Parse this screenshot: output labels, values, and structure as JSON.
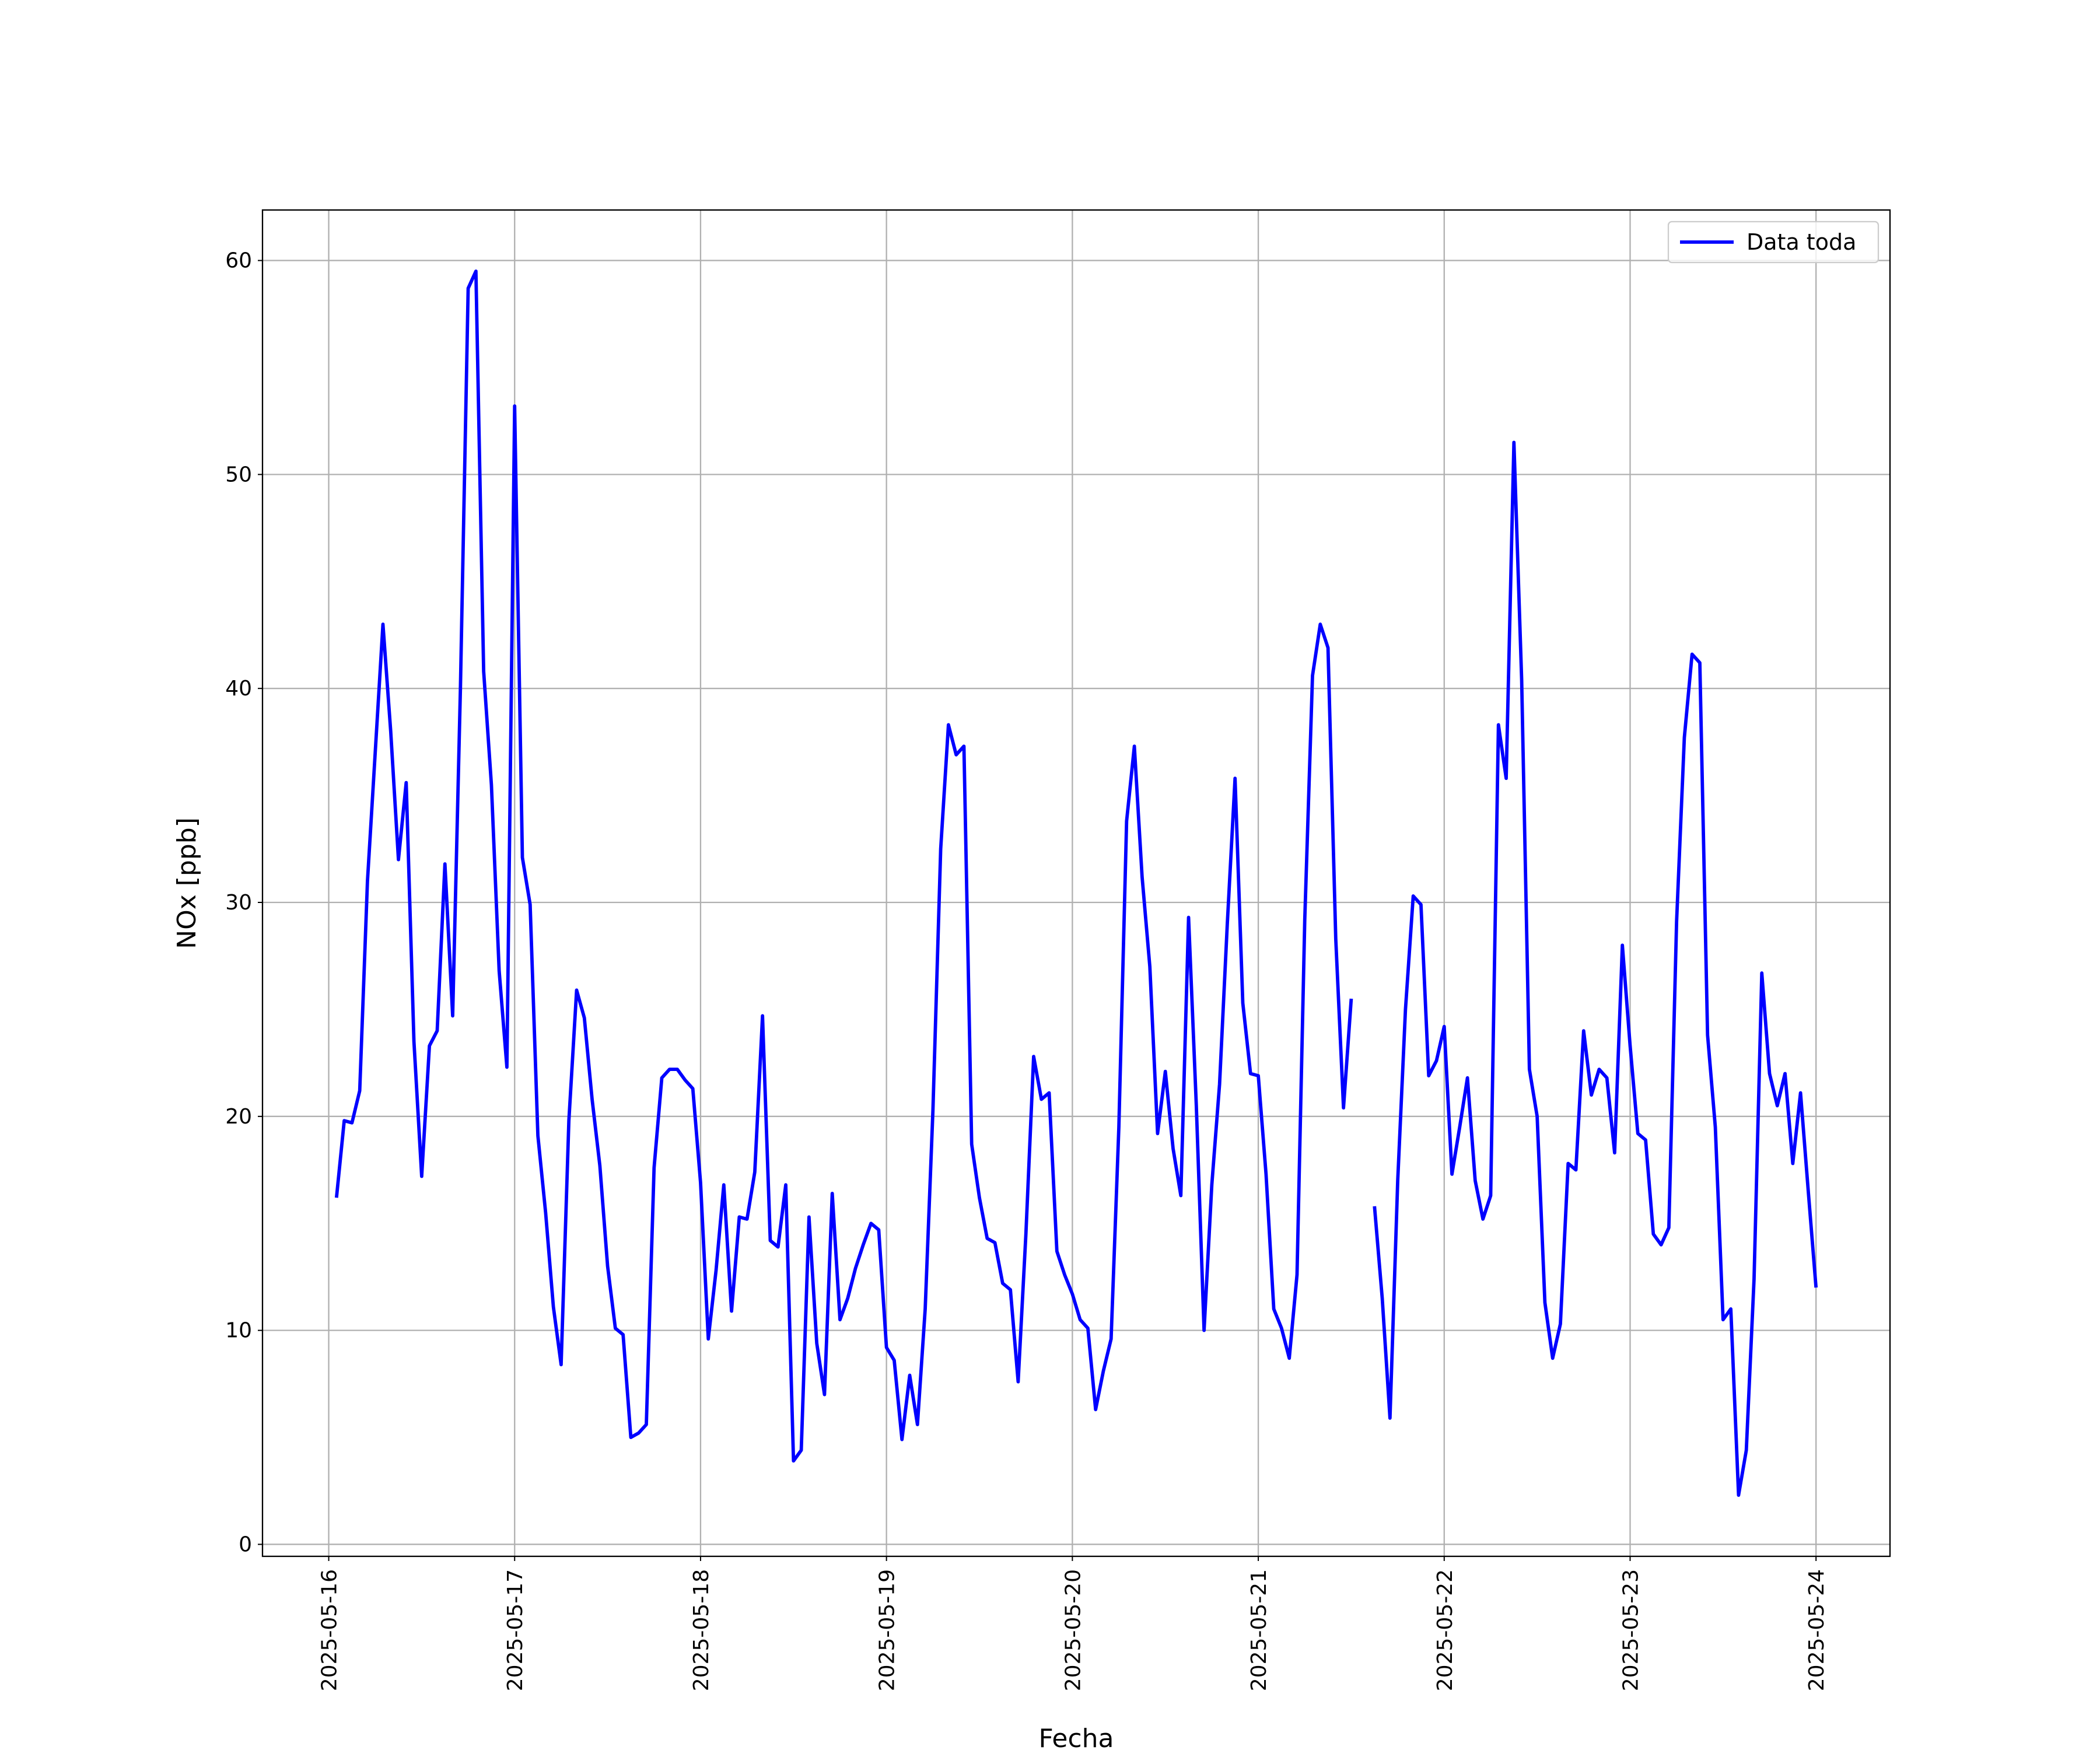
{
  "chart_data": {
    "type": "line",
    "xlabel": "Fecha",
    "ylabel": "NOx [ppb]",
    "x": [
      "2025-05-16 01:00",
      "2025-05-16 02:00",
      "2025-05-16 03:00",
      "2025-05-16 04:00",
      "2025-05-16 05:00",
      "2025-05-16 06:00",
      "2025-05-16 07:00",
      "2025-05-16 08:00",
      "2025-05-16 09:00",
      "2025-05-16 10:00",
      "2025-05-16 11:00",
      "2025-05-16 12:00",
      "2025-05-16 13:00",
      "2025-05-16 14:00",
      "2025-05-16 15:00",
      "2025-05-16 16:00",
      "2025-05-16 17:00",
      "2025-05-16 18:00",
      "2025-05-16 19:00",
      "2025-05-16 20:00",
      "2025-05-16 21:00",
      "2025-05-16 22:00",
      "2025-05-16 23:00",
      "2025-05-17 00:00",
      "2025-05-17 01:00",
      "2025-05-17 02:00",
      "2025-05-17 03:00",
      "2025-05-17 04:00",
      "2025-05-17 05:00",
      "2025-05-17 06:00",
      "2025-05-17 07:00",
      "2025-05-17 08:00",
      "2025-05-17 09:00",
      "2025-05-17 10:00",
      "2025-05-17 11:00",
      "2025-05-17 12:00",
      "2025-05-17 13:00",
      "2025-05-17 14:00",
      "2025-05-17 15:00",
      "2025-05-17 16:00",
      "2025-05-17 17:00",
      "2025-05-17 18:00",
      "2025-05-17 19:00",
      "2025-05-17 20:00",
      "2025-05-17 21:00",
      "2025-05-17 22:00",
      "2025-05-17 23:00",
      "2025-05-18 00:00",
      "2025-05-18 01:00",
      "2025-05-18 02:00",
      "2025-05-18 03:00",
      "2025-05-18 04:00",
      "2025-05-18 05:00",
      "2025-05-18 06:00",
      "2025-05-18 07:00",
      "2025-05-18 08:00",
      "2025-05-18 09:00",
      "2025-05-18 10:00",
      "2025-05-18 11:00",
      "2025-05-18 12:00",
      "2025-05-18 13:00",
      "2025-05-18 14:00",
      "2025-05-18 15:00",
      "2025-05-18 16:00",
      "2025-05-18 17:00",
      "2025-05-18 18:00",
      "2025-05-18 19:00",
      "2025-05-18 20:00",
      "2025-05-18 21:00",
      "2025-05-18 22:00",
      "2025-05-18 23:00",
      "2025-05-19 00:00",
      "2025-05-19 01:00",
      "2025-05-19 02:00",
      "2025-05-19 03:00",
      "2025-05-19 04:00",
      "2025-05-19 05:00",
      "2025-05-19 06:00",
      "2025-05-19 07:00",
      "2025-05-19 08:00",
      "2025-05-19 09:00",
      "2025-05-19 10:00",
      "2025-05-19 11:00",
      "2025-05-19 12:00",
      "2025-05-19 13:00",
      "2025-05-19 14:00",
      "2025-05-19 15:00",
      "2025-05-19 16:00",
      "2025-05-19 17:00",
      "2025-05-19 18:00",
      "2025-05-19 19:00",
      "2025-05-19 20:00",
      "2025-05-19 21:00",
      "2025-05-19 22:00",
      "2025-05-19 23:00",
      "2025-05-20 00:00",
      "2025-05-20 01:00",
      "2025-05-20 02:00",
      "2025-05-20 03:00",
      "2025-05-20 04:00",
      "2025-05-20 05:00",
      "2025-05-20 06:00",
      "2025-05-20 07:00",
      "2025-05-20 08:00",
      "2025-05-20 09:00",
      "2025-05-20 10:00",
      "2025-05-20 11:00",
      "2025-05-20 12:00",
      "2025-05-20 13:00",
      "2025-05-20 14:00",
      "2025-05-20 15:00",
      "2025-05-20 16:00",
      "2025-05-20 17:00",
      "2025-05-20 18:00",
      "2025-05-20 19:00",
      "2025-05-20 20:00",
      "2025-05-20 21:00",
      "2025-05-20 22:00",
      "2025-05-20 23:00",
      "2025-05-21 00:00",
      "2025-05-21 01:00",
      "2025-05-21 02:00",
      "2025-05-21 03:00",
      "2025-05-21 04:00",
      "2025-05-21 05:00",
      "2025-05-21 06:00",
      "2025-05-21 07:00",
      "2025-05-21 08:00",
      "2025-05-21 09:00",
      "2025-05-21 10:00",
      "2025-05-21 11:00",
      "2025-05-21 12:00",
      "2025-05-21 13:00",
      "2025-05-21 14:00",
      "2025-05-21 15:00",
      "2025-05-21 16:00",
      "2025-05-21 17:00",
      "2025-05-21 18:00",
      "2025-05-21 19:00",
      "2025-05-21 20:00",
      "2025-05-21 21:00",
      "2025-05-21 22:00",
      "2025-05-21 23:00",
      "2025-05-22 00:00",
      "2025-05-22 01:00",
      "2025-05-22 02:00",
      "2025-05-22 03:00",
      "2025-05-22 04:00",
      "2025-05-22 05:00",
      "2025-05-22 06:00",
      "2025-05-22 07:00",
      "2025-05-22 08:00",
      "2025-05-22 09:00",
      "2025-05-22 10:00",
      "2025-05-22 11:00",
      "2025-05-22 12:00",
      "2025-05-22 13:00",
      "2025-05-22 14:00",
      "2025-05-22 15:00",
      "2025-05-22 16:00",
      "2025-05-22 17:00",
      "2025-05-22 18:00",
      "2025-05-22 19:00",
      "2025-05-22 20:00",
      "2025-05-22 21:00",
      "2025-05-22 22:00",
      "2025-05-22 23:00",
      "2025-05-23 00:00",
      "2025-05-23 01:00",
      "2025-05-23 02:00",
      "2025-05-23 03:00",
      "2025-05-23 04:00",
      "2025-05-23 05:00",
      "2025-05-23 06:00",
      "2025-05-23 07:00",
      "2025-05-23 08:00",
      "2025-05-23 09:00",
      "2025-05-23 10:00",
      "2025-05-23 11:00",
      "2025-05-23 12:00",
      "2025-05-23 13:00",
      "2025-05-23 14:00",
      "2025-05-23 15:00",
      "2025-05-23 16:00",
      "2025-05-23 17:00",
      "2025-05-23 18:00",
      "2025-05-23 19:00",
      "2025-05-23 20:00",
      "2025-05-23 21:00",
      "2025-05-23 22:00",
      "2025-05-23 23:00",
      "2025-05-24 00:00"
    ],
    "series": [
      {
        "name": "Data toda",
        "color": "#0000ff",
        "values": [
          16.2,
          19.8,
          19.7,
          21.2,
          31,
          37,
          43,
          38,
          32,
          35.6,
          23.5,
          17.2,
          23.3,
          24,
          31.8,
          24.7,
          40,
          58.7,
          59.5,
          40.8,
          35.5,
          26.8,
          22.3,
          53.2,
          32.1,
          29.9,
          19.1,
          15.5,
          11.1,
          8.4,
          19.8,
          25.9,
          24.6,
          20.8,
          17.7,
          13,
          10.1,
          9.8,
          5,
          5.2,
          5.6,
          17.6,
          21.8,
          22.2,
          22.2,
          21.7,
          21.3,
          16.9,
          9.6,
          12.8,
          16.8,
          10.9,
          15.3,
          15.2,
          17.4,
          24.7,
          14.2,
          13.9,
          16.8,
          3.9,
          4.4,
          15.3,
          9.4,
          7,
          16.4,
          10.5,
          11.5,
          12.9,
          14,
          15,
          14.7,
          9.2,
          8.6,
          4.9,
          7.9,
          5.6,
          11,
          20.3,
          32.5,
          38.3,
          36.9,
          37.3,
          18.7,
          16.2,
          14.3,
          14.1,
          12.2,
          11.9,
          7.6,
          14.5,
          22.8,
          20.8,
          21.1,
          13.7,
          12.6,
          11.7,
          10.5,
          10.1,
          6.3,
          8.1,
          9.6,
          19.5,
          33.8,
          37.3,
          31.2,
          27,
          19.2,
          22.1,
          18.5,
          16.3,
          29.3,
          20.5,
          10,
          16.8,
          21.5,
          29,
          35.8,
          25.3,
          22,
          21.9,
          17.3,
          11,
          10.1,
          8.7,
          12.6,
          29.2,
          40.6,
          43,
          41.9,
          28.3,
          20.4,
          25.5,
          null,
          null,
          15.8,
          11.5,
          5.9,
          17,
          25,
          30.3,
          29.9,
          21.9,
          22.6,
          24.2,
          17.3,
          19.5,
          21.8,
          17,
          15.2,
          16.3,
          38.3,
          35.8,
          51.5,
          40.4,
          22.2,
          20,
          11.3,
          8.7,
          10.3,
          17.8,
          17.5,
          24,
          21,
          22.2,
          21.8,
          18.3,
          28,
          23.3,
          19.2,
          18.9,
          14.5,
          14,
          14.8,
          29.1,
          37.7,
          41.6,
          41.2,
          23.8,
          19.5,
          10.5,
          11,
          2.3,
          4.4,
          12.4,
          26.7,
          22,
          20.5,
          22,
          17.8,
          21.1,
          16.5,
          12
        ]
      }
    ],
    "xlim": [
      "2025-05-15 15:27",
      "2025-05-24 09:33"
    ],
    "xticks": [
      "2025-05-16",
      "2025-05-17",
      "2025-05-18",
      "2025-05-19",
      "2025-05-20",
      "2025-05-21",
      "2025-05-22",
      "2025-05-23",
      "2025-05-24"
    ],
    "ylim": [
      -0.56,
      62.36
    ],
    "yticks": [
      0,
      10,
      20,
      30,
      40,
      50,
      60
    ],
    "grid": true,
    "legend": "upper right"
  }
}
